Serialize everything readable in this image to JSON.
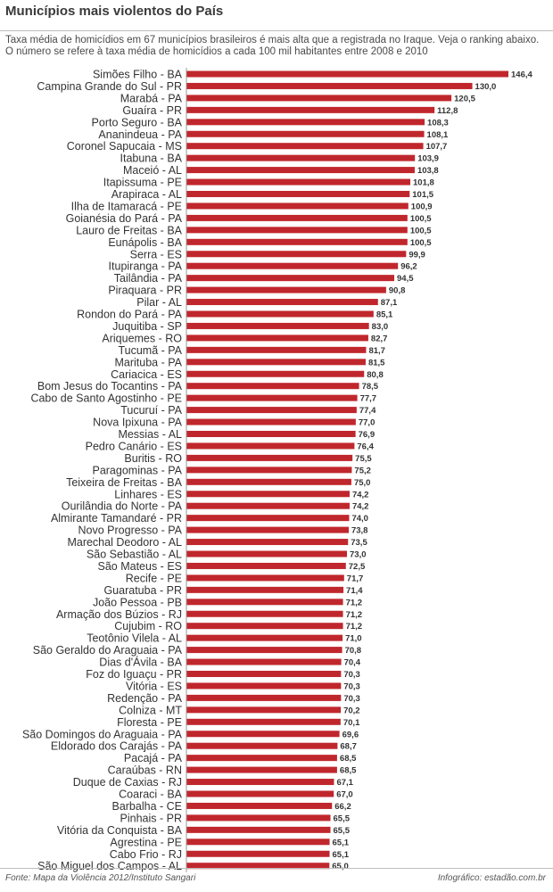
{
  "title": "Municípios mais violentos do País",
  "subtitle": "Taxa média de homicídios em 67 municípios brasileiros é mais alta que a registrada no Iraque. Veja o ranking abaixo. O número se refere à taxa média de homicídios a cada 100 mil habitantes entre 2008 e 2010",
  "source": "Fonte: Mapa da Violência 2012/Instituto Sangari",
  "credit": "Infográfico: estadão.com.br",
  "colors": {
    "bar": "#c0272d",
    "text": "#333333",
    "rule": "#bdbdbd"
  },
  "chart_data": {
    "type": "bar",
    "orientation": "horizontal",
    "categories": [
      "Simões Filho - BA",
      "Campina Grande do Sul - PR",
      "Marabá - PA",
      "Guaíra - PR",
      "Porto Seguro - BA",
      "Ananindeua - PA",
      "Coronel Sapucaia - MS",
      "Itabuna - BA",
      "Maceió - AL",
      "Itapissuma - PE",
      "Arapiraca - AL",
      "Ilha de Itamaracá - PE",
      "Goianésia do Pará - PA",
      "Lauro de Freitas - BA",
      "Eunápolis - BA",
      "Serra - ES",
      "Itupiranga - PA",
      "Tailândia - PA",
      "Piraquara - PR",
      "Pilar - AL",
      "Rondon do Pará - PA",
      "Juquitiba - SP",
      "Ariquemes - RO",
      "Tucumã - PA",
      "Marituba - PA",
      "Cariacica - ES",
      "Bom Jesus do Tocantins - PA",
      "Cabo de Santo Agostinho - PE",
      "Tucuruí - PA",
      "Nova Ipixuna - PA",
      "Messias - AL",
      "Pedro Canário - ES",
      "Buritis - RO",
      "Paragominas - PA",
      "Teixeira de Freitas - BA",
      "Linhares - ES",
      "Ourilândia do Norte - PA",
      "Almirante Tamandaré - PR",
      "Novo Progresso - PA",
      "Marechal Deodoro - AL",
      "São Sebastião - AL",
      "São Mateus - ES",
      "Recife - PE",
      "Guaratuba - PR",
      "João Pessoa - PB",
      "Armação dos Búzios - RJ",
      "Cujubim - RO",
      "Teotônio Vilela - AL",
      "São Geraldo do Araguaia - PA",
      "Dias d'Ávila - BA",
      "Foz do Iguaçu - PR",
      "Vitória - ES",
      "Redenção - PA",
      "Colniza - MT",
      "Floresta - PE",
      "São Domingos do Araguaia - PA",
      "Eldorado dos Carajás - PA",
      "Pacajá - PA",
      "Caraúbas - RN",
      "Duque de Caxias - RJ",
      "Coaraci - BA",
      "Barbalha - CE",
      "Pinhais - PR",
      "Vitória da Conquista - BA",
      "Agrestina - PE",
      "Cabo Frio - RJ",
      "São Miguel dos Campos - AL"
    ],
    "values": [
      146.4,
      130.0,
      120.5,
      112.8,
      108.3,
      108.1,
      107.7,
      103.9,
      103.8,
      101.8,
      101.5,
      100.9,
      100.5,
      100.5,
      100.5,
      99.9,
      96.2,
      94.5,
      90.8,
      87.1,
      85.1,
      83.0,
      82.7,
      81.7,
      81.5,
      80.8,
      78.5,
      77.7,
      77.4,
      77.0,
      76.9,
      76.4,
      75.5,
      75.2,
      75.0,
      74.2,
      74.2,
      74.0,
      73.8,
      73.5,
      73.0,
      72.5,
      71.7,
      71.4,
      71.2,
      71.2,
      71.2,
      71.0,
      70.8,
      70.4,
      70.3,
      70.3,
      70.3,
      70.2,
      70.1,
      69.6,
      68.7,
      68.5,
      68.5,
      67.1,
      67.0,
      66.2,
      65.5,
      65.5,
      65.1,
      65.1,
      65.0
    ],
    "value_labels": [
      "146,4",
      "130,0",
      "120,5",
      "112,8",
      "108,3",
      "108,1",
      "107,7",
      "103,9",
      "103,8",
      "101,8",
      "101,5",
      "100,9",
      "100,5",
      "100,5",
      "100,5",
      "99,9",
      "96,2",
      "94,5",
      "90,8",
      "87,1",
      "85,1",
      "83,0",
      "82,7",
      "81,7",
      "81,5",
      "80,8",
      "78,5",
      "77,7",
      "77,4",
      "77,0",
      "76,9",
      "76,4",
      "75,5",
      "75,2",
      "75,0",
      "74,2",
      "74,2",
      "74,0",
      "73,8",
      "73,5",
      "73,0",
      "72,5",
      "71,7",
      "71,4",
      "71,2",
      "71,2",
      "71,2",
      "71,0",
      "70,8",
      "70,4",
      "70,3",
      "70,3",
      "70,3",
      "70,2",
      "70,1",
      "69,6",
      "68,7",
      "68,5",
      "68,5",
      "67,1",
      "67,0",
      "66,2",
      "65,5",
      "65,5",
      "65,1",
      "65,1",
      "65,0"
    ],
    "xlim": [
      0,
      146.4
    ],
    "grid": false,
    "legend": "none"
  }
}
